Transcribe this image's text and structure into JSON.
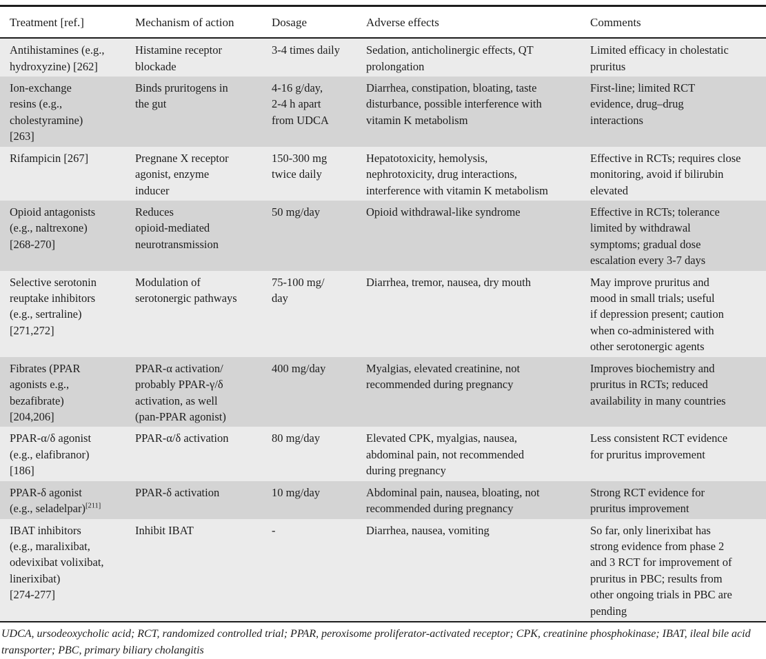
{
  "theme": {
    "row_light": "#ebebeb",
    "row_dark": "#d4d4d4",
    "border": "#1c1c1c",
    "text": "#1d1d1d",
    "background": "#ffffff"
  },
  "table": {
    "columns": [
      "Treatment [ref.]",
      "Mechanism of action",
      "Dosage",
      "Adverse effects",
      "Comments"
    ],
    "rows": [
      {
        "treatment": "Antihistamines (e.g.,\nhydroxyzine) [262]",
        "mechanism": "Histamine receptor\nblockade",
        "dosage": "3-4 times daily",
        "adverse_effects": "Sedation, anticholinergic effects, QT\nprolongation",
        "comments": "Limited efficacy in cholestatic\npruritus"
      },
      {
        "treatment": "Ion-exchange\nresins (e.g.,\ncholestyramine)\n[263]",
        "mechanism": "Binds pruritogens in\nthe gut",
        "dosage": "4-16 g/day,\n2-4 h apart\nfrom UDCA",
        "adverse_effects": "Diarrhea, constipation, bloating, taste\ndisturbance, possible interference with\nvitamin K metabolism",
        "comments": "First-line; limited RCT\nevidence, drug–drug\ninteractions"
      },
      {
        "treatment": "Rifampicin [267]",
        "mechanism": "Pregnane X receptor\nagonist, enzyme\ninducer",
        "dosage": "150-300 mg\ntwice daily",
        "adverse_effects": "Hepatotoxicity, hemolysis,\nnephrotoxicity, drug interactions,\ninterference with vitamin K metabolism",
        "comments": "Effective in RCTs; requires close\nmonitoring, avoid if bilirubin\nelevated"
      },
      {
        "treatment": "Opioid antagonists\n(e.g., naltrexone)\n[268-270]",
        "mechanism": "Reduces\nopioid-mediated\nneurotransmission",
        "dosage": "50 mg/day",
        "adverse_effects": "Opioid withdrawal-like syndrome",
        "comments": "Effective in RCTs; tolerance\nlimited by withdrawal\nsymptoms; gradual dose\nescalation every 3-7 days"
      },
      {
        "treatment": "Selective serotonin\nreuptake inhibitors\n(e.g., sertraline)\n[271,272]",
        "mechanism": "Modulation of\nserotonergic pathways",
        "dosage": "75-100 mg/\nday",
        "adverse_effects": "Diarrhea, tremor, nausea, dry mouth",
        "comments": "May improve pruritus and\nmood in small trials; useful\nif depression present; caution\nwhen co-administered with\nother serotonergic agents"
      },
      {
        "treatment": "Fibrates (PPAR\nagonists e.g.,\nbezafibrate)\n[204,206]",
        "mechanism": "PPAR-α activation/\nprobably PPAR-γ/δ\nactivation, as well\n(pan-PPAR agonist)",
        "dosage": "400 mg/day",
        "adverse_effects": "Myalgias, elevated creatinine, not\nrecommended during pregnancy",
        "comments": "Improves biochemistry and\npruritus in RCTs; reduced\navailability in many countries"
      },
      {
        "treatment": "PPAR-α/δ agonist\n(e.g., elafibranor)\n[186]",
        "mechanism": "PPAR-α/δ activation",
        "dosage": "80 mg/day",
        "adverse_effects": "Elevated CPK, myalgias, nausea,\nabdominal pain, not recommended\nduring pregnancy",
        "comments": "Less consistent RCT evidence\nfor pruritus improvement"
      },
      {
        "treatment": "PPAR-δ agonist\n(e.g., seladelpar)",
        "treatment_sup": "[211]",
        "mechanism": "PPAR-δ activation",
        "dosage": "10 mg/day",
        "adverse_effects": "Abdominal pain, nausea, bloating, not\nrecommended during pregnancy",
        "comments": "Strong RCT evidence for\npruritus improvement"
      },
      {
        "treatment": "IBAT inhibitors\n(e.g., maralixibat,\nodevixibat volixibat,\nlinerixibat)\n[274-277]",
        "mechanism": "Inhibit IBAT",
        "dosage": "-",
        "adverse_effects": "Diarrhea, nausea, vomiting",
        "comments": "So far, only linerixibat has\nstrong evidence from phase 2\nand 3 RCT for improvement of\npruritus in PBC; results from\nother ongoing trials in PBC are\npending"
      }
    ],
    "footnote": "UDCA, ursodeoxycholic acid; RCT, randomized controlled trial; PPAR, peroxisome proliferator-activated receptor; CPK, creatinine phosphokinase; IBAT, ileal bile acid transporter; PBC, primary biliary cholangitis"
  }
}
